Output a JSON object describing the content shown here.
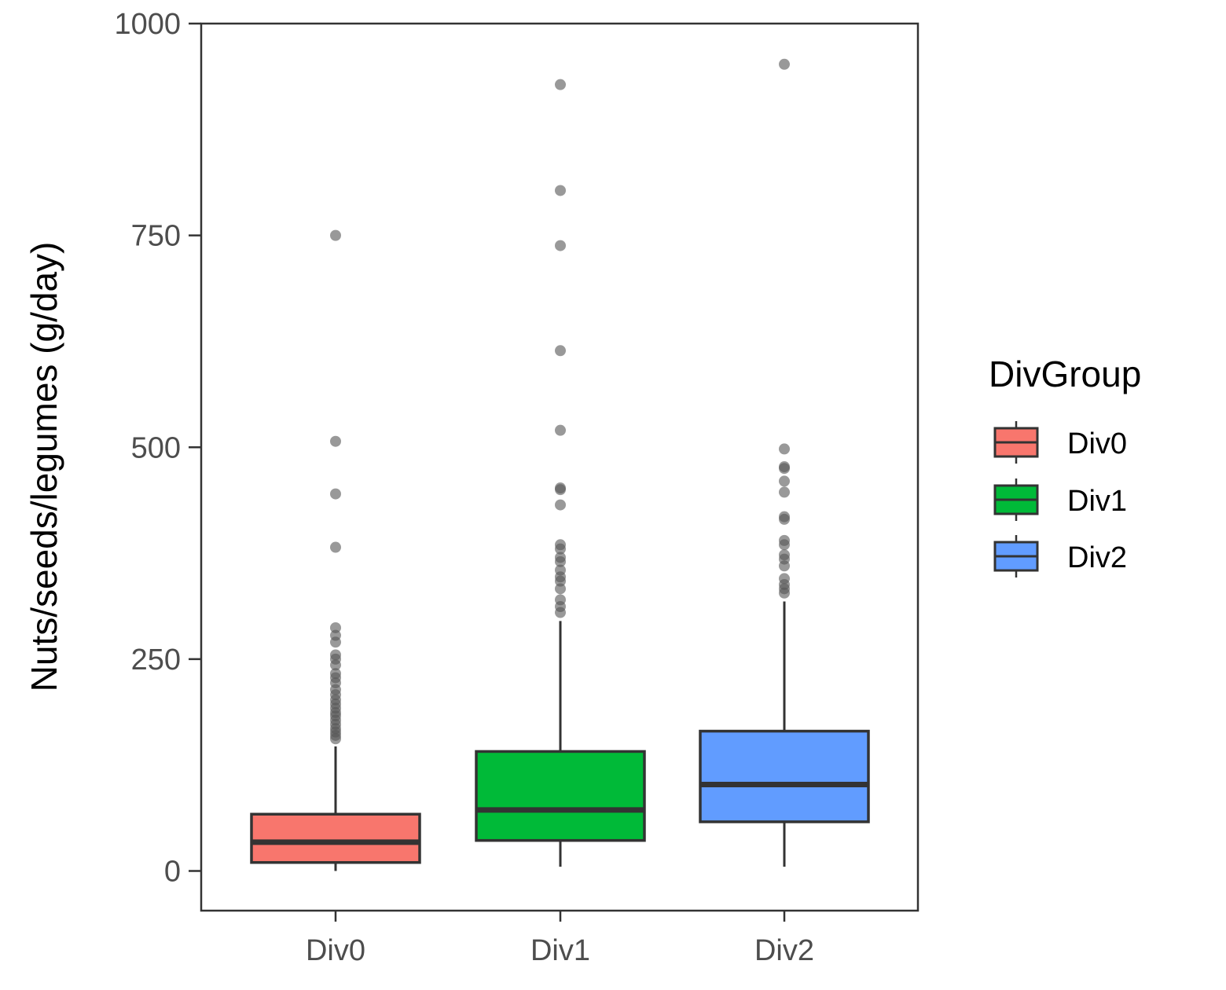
{
  "chart_data": {
    "type": "boxplot",
    "title": "",
    "xlabel": "",
    "ylabel": "Nuts/seeds/legumes (g/day)",
    "ylim": [
      -48,
      1000
    ],
    "y_ticks": [
      0,
      250,
      500,
      750,
      1000
    ],
    "y_tick_labels": [
      "0",
      "250",
      "500",
      "750",
      "1000"
    ],
    "categories": [
      "Div0",
      "Div1",
      "Div2"
    ],
    "grid": false,
    "legend": {
      "title": "DivGroup",
      "position": "right",
      "entries": [
        "Div0",
        "Div1",
        "Div2"
      ]
    },
    "colors": {
      "Div0": "#F8766D",
      "Div1": "#00BA38",
      "Div2": "#619CFF",
      "outline": "#333333",
      "outlier": "#555555"
    },
    "boxes": [
      {
        "category": "Div0",
        "whisker_low": 0,
        "q1": 10,
        "median": 34,
        "q3": 67,
        "whisker_high": 147,
        "outliers": [
          750,
          507,
          445,
          382,
          287,
          278,
          270,
          255,
          250,
          243,
          233,
          228,
          222,
          214,
          208,
          202,
          197,
          192,
          187,
          183,
          178,
          173,
          168,
          164,
          160,
          156
        ]
      },
      {
        "category": "Div1",
        "whisker_low": 5,
        "q1": 36,
        "median": 72,
        "q3": 141,
        "whisker_high": 295,
        "outliers": [
          928,
          803,
          738,
          614,
          520,
          452,
          450,
          432,
          385,
          380,
          370,
          365,
          355,
          347,
          342,
          333,
          320,
          312,
          305
        ]
      },
      {
        "category": "Div2",
        "whisker_low": 5,
        "q1": 58,
        "median": 102,
        "q3": 165,
        "whisker_high": 318,
        "outliers": [
          952,
          498,
          477,
          475,
          460,
          447,
          418,
          415,
          390,
          385,
          373,
          368,
          360,
          345,
          338,
          333,
          328
        ]
      }
    ]
  }
}
